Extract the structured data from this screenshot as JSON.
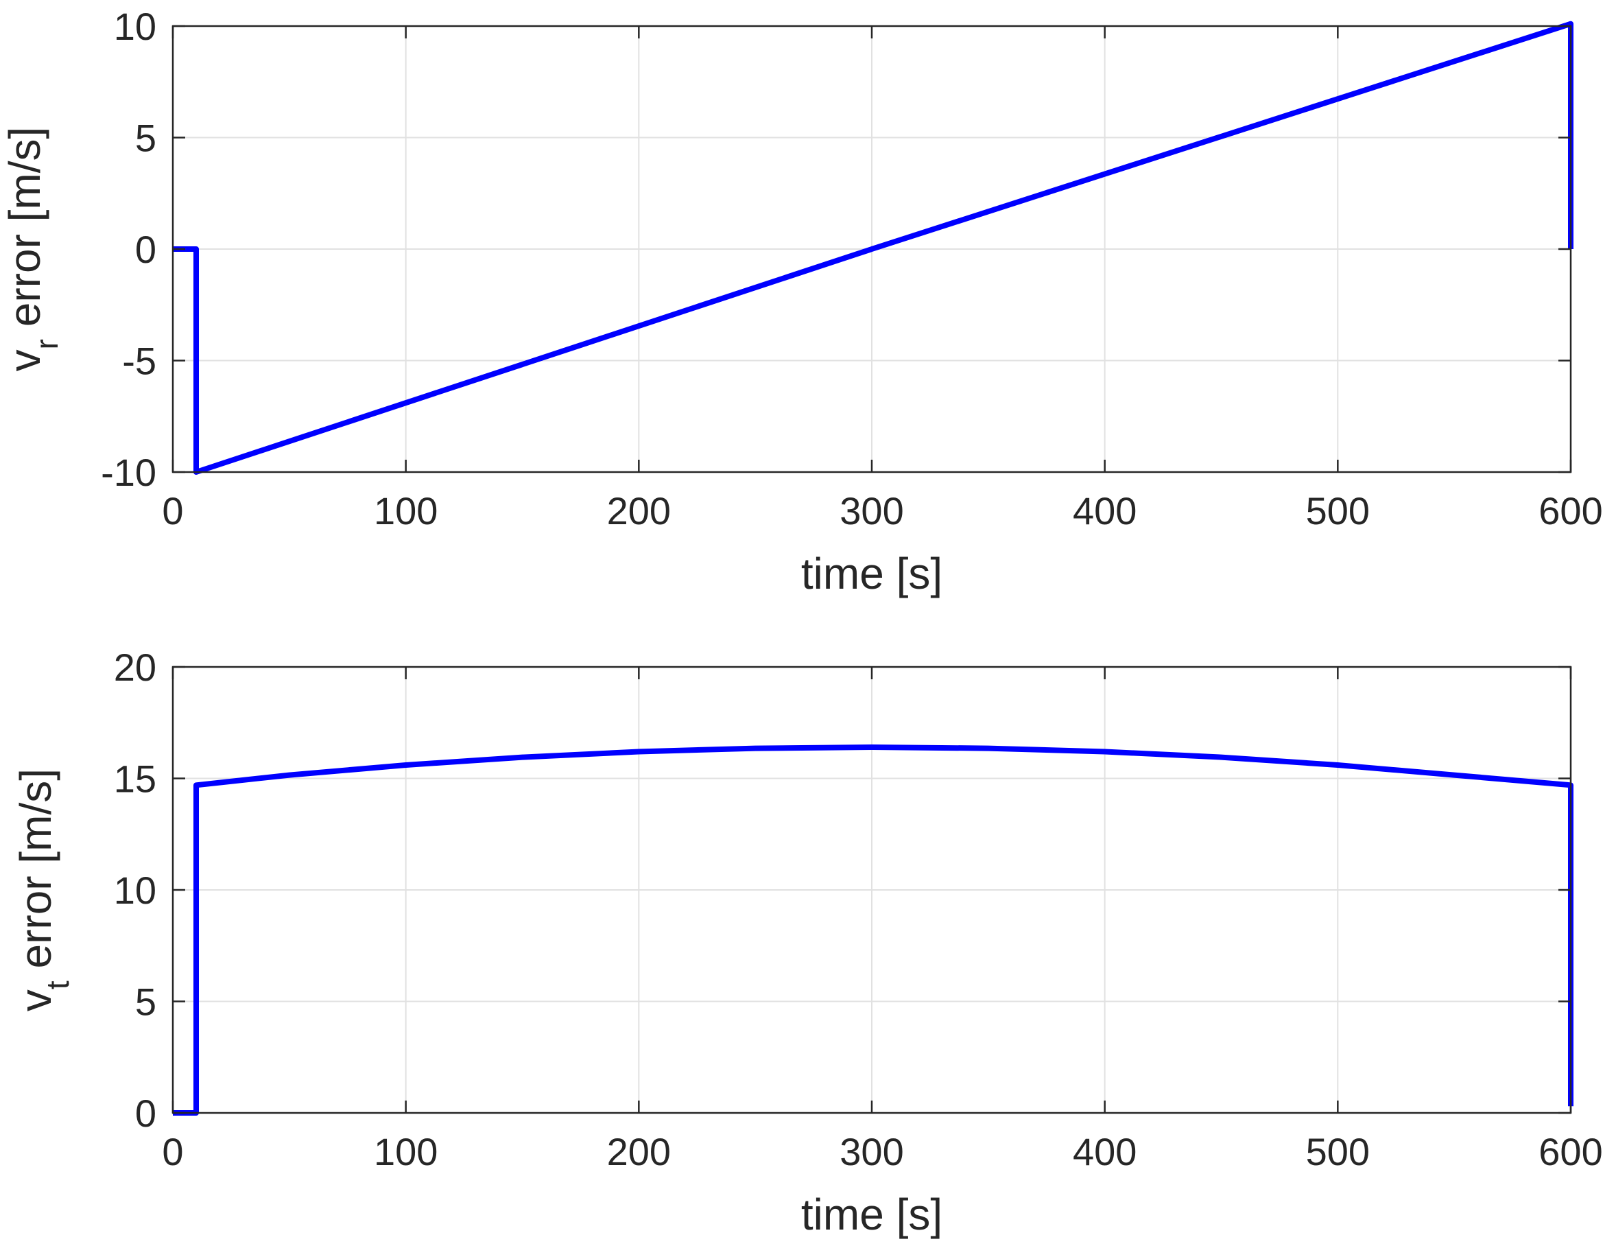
{
  "chart_data": [
    {
      "type": "line",
      "title": "",
      "xlabel": "time [s]",
      "ylabel_main": "v",
      "ylabel_sub": "r",
      "ylabel_rest": " error [m/s]",
      "xlim": [
        0,
        600
      ],
      "ylim": [
        -10,
        10
      ],
      "xticks": [
        0,
        100,
        200,
        300,
        400,
        500,
        600
      ],
      "yticks": [
        -10,
        -5,
        0,
        5,
        10
      ],
      "xtick_labels": [
        "0",
        "100",
        "200",
        "300",
        "400",
        "500",
        "600"
      ],
      "ytick_labels": [
        "-10",
        "-5",
        "0",
        "5",
        "10"
      ],
      "grid": true,
      "color": "#0000ff",
      "series": [
        {
          "x": [
            0,
            10,
            10,
            300,
            600,
            600
          ],
          "y": [
            0,
            0,
            -10,
            0,
            10.1,
            0
          ]
        }
      ]
    },
    {
      "type": "line",
      "title": "",
      "xlabel": "time [s]",
      "ylabel_main": "v",
      "ylabel_sub": "t",
      "ylabel_rest": " error [m/s]",
      "xlim": [
        0,
        600
      ],
      "ylim": [
        0,
        20
      ],
      "xticks": [
        0,
        100,
        200,
        300,
        400,
        500,
        600
      ],
      "yticks": [
        0,
        5,
        10,
        15,
        20
      ],
      "xtick_labels": [
        "0",
        "100",
        "200",
        "300",
        "400",
        "500",
        "600"
      ],
      "ytick_labels": [
        "0",
        "5",
        "10",
        "15",
        "20"
      ],
      "grid": true,
      "color": "#0000ff",
      "series": [
        {
          "x": [
            0,
            10,
            10,
            50,
            100,
            150,
            200,
            250,
            300,
            350,
            400,
            450,
            500,
            550,
            600,
            600
          ],
          "y": [
            0,
            0,
            14.7,
            15.15,
            15.6,
            15.95,
            16.2,
            16.35,
            16.4,
            16.35,
            16.2,
            15.95,
            15.6,
            15.15,
            14.7,
            0.3
          ]
        }
      ]
    }
  ]
}
